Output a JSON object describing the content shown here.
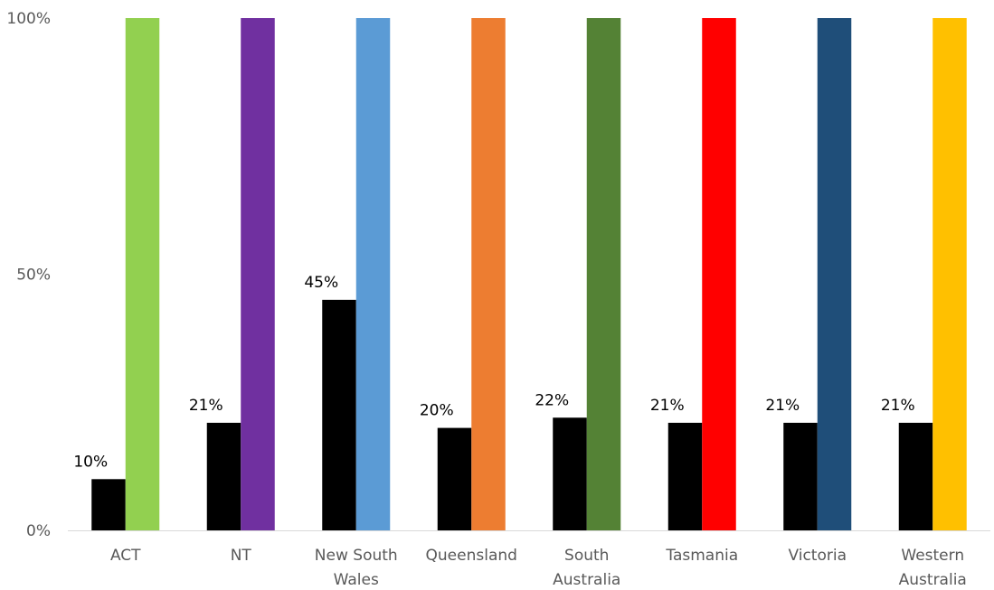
{
  "chart_data": {
    "type": "bar",
    "title": "",
    "xlabel": "",
    "ylabel": "",
    "ylim": [
      0,
      100
    ],
    "yticks": [
      0,
      50,
      100
    ],
    "ytick_labels": [
      "0%",
      "50%",
      "100%"
    ],
    "grid": false,
    "legend": "none",
    "categories": [
      [
        "ACT"
      ],
      [
        "NT"
      ],
      [
        "New South",
        "Wales"
      ],
      [
        "Queensland"
      ],
      [
        "South",
        "Australia"
      ],
      [
        "Tasmania"
      ],
      [
        "Victoria"
      ],
      [
        "Western",
        "Australia"
      ]
    ],
    "series": [
      {
        "color": "#000000",
        "values": [
          10,
          21,
          45,
          20,
          22,
          21,
          21,
          21
        ],
        "data_labels": [
          "10%",
          "21%",
          "45%",
          "20%",
          "22%",
          "21%",
          "21%",
          "21%"
        ]
      },
      {
        "values": [
          100,
          100,
          100,
          100,
          100,
          100,
          100,
          100
        ],
        "colors": [
          "#92d050",
          "#7030a0",
          "#5b9bd5",
          "#ed7d31",
          "#548235",
          "#ff0000",
          "#1f4e79",
          "#ffc000"
        ]
      }
    ]
  }
}
